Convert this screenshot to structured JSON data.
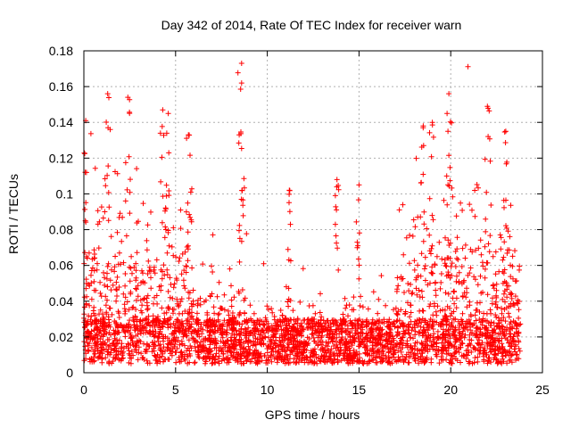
{
  "chart_data": {
    "type": "scatter",
    "title": "Day 342 of 2014, Rate Of TEC Index for receiver warn",
    "xlabel": "GPS time / hours",
    "ylabel": "ROTI / TECUs",
    "xlim": [
      0,
      25
    ],
    "ylim": [
      0,
      0.18
    ],
    "xticks": [
      0,
      5,
      10,
      15,
      20,
      25
    ],
    "yticks": [
      0,
      0.02,
      0.04,
      0.06,
      0.08,
      0.1,
      0.12,
      0.14,
      0.16,
      0.18
    ],
    "xtick_labels": [
      "0",
      "5",
      "10",
      "15",
      "20",
      "25"
    ],
    "ytick_labels": [
      "0",
      "0.02",
      "0.04",
      "0.06",
      "0.08",
      "0.1",
      "0.12",
      "0.14",
      "0.16",
      "0.18"
    ],
    "grid": true,
    "marker": "+",
    "color": "#ff0000",
    "series": [
      {
        "name": "ROTI",
        "x_range": [
          0,
          23.8
        ],
        "baseline_range": [
          0.005,
          0.03
        ],
        "notable_peaks": [
          {
            "x": 0.1,
            "y": 0.141
          },
          {
            "x": 1.3,
            "y": 0.156
          },
          {
            "x": 2.4,
            "y": 0.154
          },
          {
            "x": 4.3,
            "y": 0.147
          },
          {
            "x": 4.6,
            "y": 0.145
          },
          {
            "x": 5.7,
            "y": 0.133
          },
          {
            "x": 8.6,
            "y": 0.173
          },
          {
            "x": 8.6,
            "y": 0.162
          },
          {
            "x": 11.2,
            "y": 0.102
          },
          {
            "x": 13.8,
            "y": 0.108
          },
          {
            "x": 15.0,
            "y": 0.105
          },
          {
            "x": 18.5,
            "y": 0.138
          },
          {
            "x": 19.0,
            "y": 0.14
          },
          {
            "x": 19.9,
            "y": 0.156
          },
          {
            "x": 19.8,
            "y": 0.145
          },
          {
            "x": 22.0,
            "y": 0.149
          },
          {
            "x": 23.0,
            "y": 0.135
          }
        ]
      }
    ]
  }
}
